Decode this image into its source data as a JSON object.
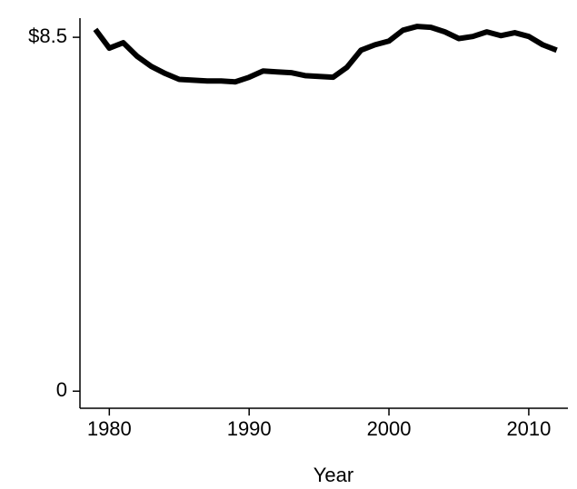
{
  "chart_data": {
    "type": "line",
    "x_label": "Year",
    "x": [
      1979,
      1980,
      1981,
      1982,
      1983,
      1984,
      1985,
      1986,
      1987,
      1988,
      1989,
      1990,
      1991,
      1992,
      1993,
      1994,
      1995,
      1996,
      1997,
      1998,
      1999,
      2000,
      2001,
      2002,
      2003,
      2004,
      2005,
      2006,
      2007,
      2008,
      2009,
      2010,
      2011,
      2012
    ],
    "values": [
      8.69,
      8.24,
      8.37,
      8.04,
      7.8,
      7.63,
      7.49,
      7.47,
      7.45,
      7.45,
      7.43,
      7.54,
      7.69,
      7.67,
      7.65,
      7.58,
      7.56,
      7.54,
      7.78,
      8.19,
      8.32,
      8.41,
      8.67,
      8.76,
      8.74,
      8.63,
      8.47,
      8.52,
      8.63,
      8.54,
      8.61,
      8.52,
      8.32,
      8.19
    ],
    "color": "#000000",
    "xlim": [
      1977.9,
      2012.8
    ],
    "xticks": [
      1980,
      1990,
      2000,
      2010
    ],
    "ylim": [
      -0.41,
      8.96
    ],
    "yticks": [
      0,
      {
        "value": 8.5,
        "label": "$8.5"
      }
    ]
  }
}
